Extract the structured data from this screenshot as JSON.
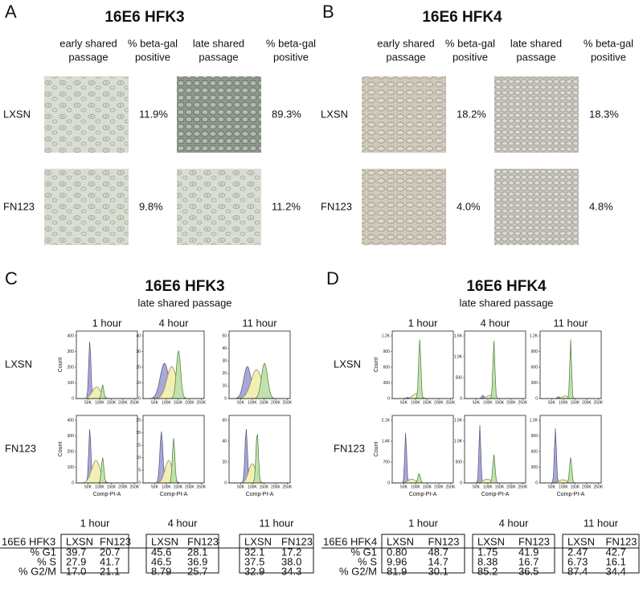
{
  "panels": [
    {
      "letter": "A",
      "title": "16E6 HFK3",
      "col_headers": [
        [
          "early shared",
          "passage"
        ],
        [
          "% beta-gal",
          "positive"
        ],
        [
          "late shared",
          "passage"
        ],
        [
          "% beta-gal",
          "positive"
        ]
      ],
      "rows": [
        {
          "label": "LXSN",
          "values": [
            "11.9%",
            "89.3%"
          ]
        },
        {
          "label": "FN123",
          "values": [
            "9.8%",
            "11.2%"
          ]
        }
      ]
    },
    {
      "letter": "B",
      "title": "16E6 HFK4",
      "col_headers": [
        [
          "early shared",
          "passage"
        ],
        [
          "% beta-gal",
          "positive"
        ],
        [
          "late shared",
          "passage"
        ],
        [
          "% beta-gal",
          "positive"
        ]
      ],
      "rows": [
        {
          "label": "LXSN",
          "values": [
            "18.2%",
            "18.3%"
          ]
        },
        {
          "label": "FN123",
          "values": [
            "4.0%",
            "4.8%"
          ]
        }
      ]
    },
    {
      "letter": "C",
      "title": "16E6 HFK3",
      "subtitle": "late shared passage",
      "times": [
        "1 hour",
        "4 hour",
        "11 hour"
      ],
      "rows": [
        "LXSN",
        "FN123"
      ],
      "y_label": "Count",
      "x_label": "Comp-PI-A",
      "x_ticks": [
        "50K",
        "100K",
        "150K",
        "200K",
        "250K"
      ],
      "y_ticks": [
        [
          [
            "400",
            "300",
            "200",
            "100",
            "0"
          ],
          [
            "40",
            "30",
            "20",
            "10",
            "0"
          ],
          [
            "50",
            "40",
            "30",
            "20",
            "10",
            "0"
          ]
        ],
        [
          [
            "400",
            "300",
            "200",
            "100",
            "0"
          ],
          [
            "25",
            "20",
            "15",
            "10",
            "5",
            "0"
          ],
          [
            "60",
            "40",
            "20",
            "0"
          ]
        ]
      ]
    },
    {
      "letter": "D",
      "title": "16E6 HFK4",
      "subtitle": "late shared passage",
      "times": [
        "1 hour",
        "4 hour",
        "11 hour"
      ],
      "rows": [
        "LXSN",
        "FN123"
      ],
      "y_label": "Count",
      "x_label": "Comp-PI-A",
      "x_ticks": [
        "50K",
        "100K",
        "150K",
        "200K",
        "250K"
      ],
      "y_ticks": [
        [
          [
            "1.2K",
            "900",
            "600",
            "300",
            "0"
          ],
          [
            "1.5K",
            "1.0K",
            "500",
            "0"
          ],
          [
            "1.2K",
            "900",
            "600",
            "300",
            "0"
          ]
        ],
        [
          [
            "2.1K",
            "1.4K",
            "700",
            "0"
          ],
          [
            "1.5K",
            "1.0K",
            "500",
            "0"
          ],
          [
            "1.2K",
            "900",
            "600",
            "300",
            "0"
          ]
        ]
      ]
    }
  ],
  "tables": [
    {
      "times": [
        "1 hour",
        "4 hour",
        "11 hour"
      ],
      "header": [
        "16E6 HFK3",
        "LXSN",
        "FN123",
        "LXSN",
        "FN123",
        "LXSN",
        "FN123"
      ],
      "rows": [
        [
          "% G1",
          "39.7",
          "20.7",
          "45.6",
          "28.1",
          "32.1",
          "17.2"
        ],
        [
          "% S",
          "27.9",
          "41.7",
          "46.5",
          "36.9",
          "37.5",
          "38.0"
        ],
        [
          "% G2/M",
          "17.0",
          "21.1",
          "8.79",
          "25.7",
          "32.9",
          "34.3"
        ]
      ]
    },
    {
      "times": [
        "1 hour",
        "4 hour",
        "11 hour"
      ],
      "header": [
        "16E6 HFK4",
        "LXSN",
        "FN123",
        "LXSN",
        "FN123",
        "LXSN",
        "FN123"
      ],
      "rows": [
        [
          "% G1",
          "0.80",
          "48.7",
          "1.75",
          "41.9",
          "2.47",
          "42.7"
        ],
        [
          "% S",
          "9.96",
          "14.7",
          "8.38",
          "16.7",
          "6.73",
          "16.1"
        ],
        [
          "% G2/M",
          "81.9",
          "30.1",
          "85.2",
          "36.5",
          "87.4",
          "34.4"
        ]
      ]
    }
  ]
}
